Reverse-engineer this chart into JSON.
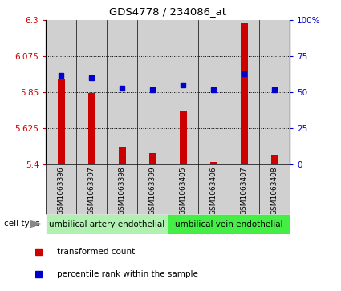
{
  "title": "GDS4778 / 234086_at",
  "samples": [
    "GSM1063396",
    "GSM1063397",
    "GSM1063398",
    "GSM1063399",
    "GSM1063405",
    "GSM1063406",
    "GSM1063407",
    "GSM1063408"
  ],
  "red_values": [
    5.93,
    5.845,
    5.51,
    5.47,
    5.73,
    5.415,
    6.28,
    5.46
  ],
  "blue_values": [
    62,
    60,
    53,
    52,
    55,
    52,
    63,
    52
  ],
  "ylim_left": [
    5.4,
    6.3
  ],
  "ylim_right": [
    0,
    100
  ],
  "yticks_left": [
    5.4,
    5.625,
    5.85,
    6.075,
    6.3
  ],
  "yticks_right": [
    0,
    25,
    50,
    75,
    100
  ],
  "ytick_labels_left": [
    "5.4",
    "5.625",
    "5.85",
    "6.075",
    "6.3"
  ],
  "ytick_labels_right": [
    "0",
    "25",
    "50",
    "75",
    "100%"
  ],
  "group1_label": "umbilical artery endothelial",
  "group2_label": "umbilical vein endothelial",
  "group1_indices": [
    0,
    1,
    2,
    3
  ],
  "group2_indices": [
    4,
    5,
    6,
    7
  ],
  "cell_type_label": "cell type",
  "legend_red": "transformed count",
  "legend_blue": "percentile rank within the sample",
  "red_color": "#cc0000",
  "blue_color": "#0000cc",
  "group1_bg": "#b0f0b0",
  "group2_bg": "#44ee44",
  "sample_bg": "#d0d0d0",
  "base_value": 5.4,
  "bar_width": 0.25
}
